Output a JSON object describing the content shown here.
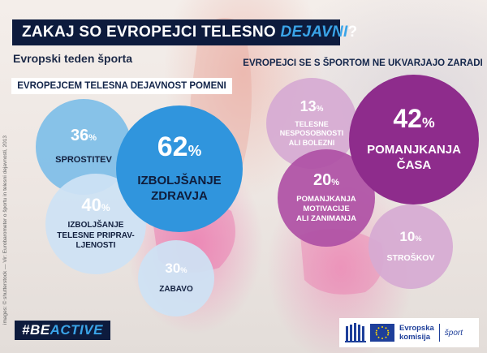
{
  "header": {
    "title_part1": "ZAKAJ SO EVROPEJCI TELESNO ",
    "title_highlight": "DEJAVNI",
    "title_end": "?",
    "subtitle": "Evropski teden športa"
  },
  "left_section": {
    "heading": "EVROPEJCEM TELESNA DEJAVNOST POMENI",
    "bubbles": [
      {
        "pct": "36",
        "label": "SPROSTITEV"
      },
      {
        "pct": "62",
        "label_line1": "IZBOLJŠANJE",
        "label_line2": "ZDRAVJA"
      },
      {
        "pct": "40",
        "label_line1": "IZBOLJŠANJE",
        "label_line2": "TELESNE PRIPRAV-",
        "label_line3": "LJENOSTI"
      },
      {
        "pct": "30",
        "label": "ZABAVO"
      }
    ]
  },
  "right_section": {
    "heading": "EVROPEJCI SE S ŠPORTOM NE UKVARJAJO ZARADI",
    "bubbles": [
      {
        "pct": "13",
        "label_line1": "TELESNE",
        "label_line2": "NESPOSOBNOSTI",
        "label_line3": "ALI BOLEZNI"
      },
      {
        "pct": "42",
        "label_line1": "POMANJKANJA",
        "label_line2": "ČASA"
      },
      {
        "pct": "20",
        "label_line1": "POMANJKANJA",
        "label_line2": "MOTIVACIJE",
        "label_line3": "ALI ZANIMANJA"
      },
      {
        "pct": "10",
        "label": "STROŠKOV"
      }
    ]
  },
  "percent_sign": "%",
  "credit": "images: © shutterstock — Vir: Eurobarometer o športu in telesni dejavnosti, 2013",
  "campaign": {
    "hash": "#BE",
    "word": "ACTIVE"
  },
  "logo": {
    "line1": "Evropska",
    "line2": "komisija",
    "sport": "šport"
  },
  "colors": {
    "navy": "#0d1b3d",
    "blue": "#3095dd",
    "purple": "#8e2c8c"
  }
}
